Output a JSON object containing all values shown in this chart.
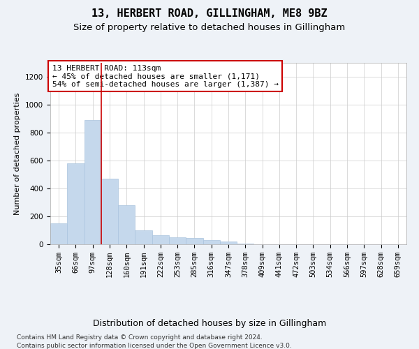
{
  "title1": "13, HERBERT ROAD, GILLINGHAM, ME8 9BZ",
  "title2": "Size of property relative to detached houses in Gillingham",
  "xlabel": "Distribution of detached houses by size in Gillingham",
  "ylabel": "Number of detached properties",
  "categories": [
    "35sqm",
    "66sqm",
    "97sqm",
    "128sqm",
    "160sqm",
    "191sqm",
    "222sqm",
    "253sqm",
    "285sqm",
    "316sqm",
    "347sqm",
    "378sqm",
    "409sqm",
    "441sqm",
    "472sqm",
    "503sqm",
    "534sqm",
    "566sqm",
    "597sqm",
    "628sqm",
    "659sqm"
  ],
  "values": [
    150,
    580,
    890,
    470,
    280,
    100,
    65,
    50,
    45,
    30,
    20,
    5,
    0,
    0,
    0,
    0,
    0,
    0,
    0,
    0,
    0
  ],
  "bar_color": "#c5d8ec",
  "bar_edgecolor": "#aac4de",
  "vline_color": "#cc0000",
  "annotation_text": "13 HERBERT ROAD: 113sqm\n← 45% of detached houses are smaller (1,171)\n54% of semi-detached houses are larger (1,387) →",
  "annotation_box_color": "#ffffff",
  "annotation_box_edgecolor": "#cc0000",
  "ylim": [
    0,
    1300
  ],
  "yticks": [
    0,
    200,
    400,
    600,
    800,
    1000,
    1200
  ],
  "bg_color": "#eef2f7",
  "plot_bg_color": "#ffffff",
  "footer1": "Contains HM Land Registry data © Crown copyright and database right 2024.",
  "footer2": "Contains public sector information licensed under the Open Government Licence v3.0.",
  "title1_fontsize": 11,
  "title2_fontsize": 9.5,
  "xlabel_fontsize": 9,
  "ylabel_fontsize": 8,
  "tick_fontsize": 7.5,
  "annotation_fontsize": 8,
  "footer_fontsize": 6.5
}
